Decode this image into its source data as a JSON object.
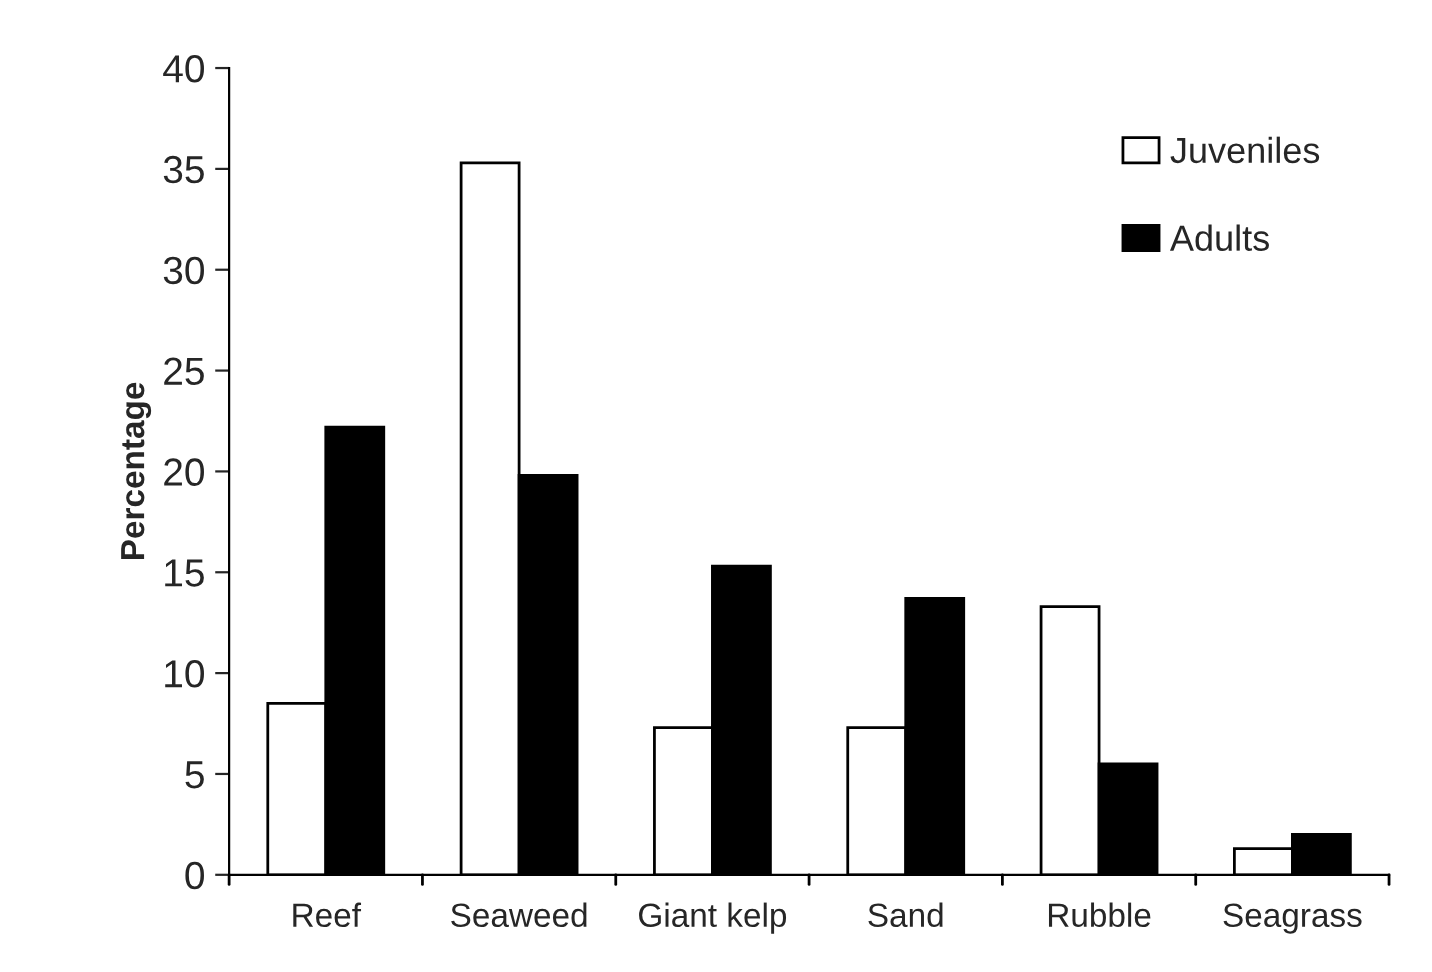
{
  "chart_data": {
    "type": "bar",
    "ylabel": "Percentage",
    "categories": [
      "Reef",
      "Seaweed",
      "Giant kelp",
      "Sand",
      "Rubble",
      "Seagrass"
    ],
    "series": [
      {
        "name": "Juveniles",
        "color": "#ffffff",
        "values": [
          8.5,
          35.3,
          7.3,
          7.3,
          13.3,
          1.3
        ]
      },
      {
        "name": "Adults",
        "color": "#000000",
        "values": [
          22.2,
          19.8,
          15.3,
          13.7,
          5.5,
          2.0
        ]
      }
    ],
    "ylim": [
      0,
      40
    ],
    "yticks": [
      0,
      5,
      10,
      15,
      20,
      25,
      30,
      35,
      40
    ],
    "grid": false,
    "legend": "top right"
  }
}
